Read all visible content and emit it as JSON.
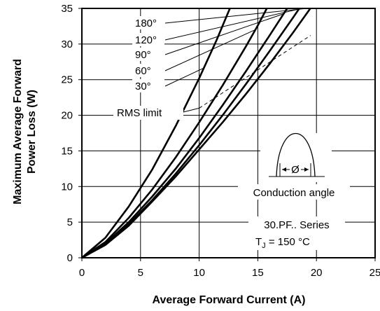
{
  "chart_data": {
    "type": "line",
    "title": "",
    "xlabel": "Average Forward Current (A)",
    "ylabel_lines": [
      "Maximum Average Forward",
      "Power Loss (W)"
    ],
    "xlim": [
      0,
      25
    ],
    "ylim": [
      0,
      35
    ],
    "xticks": [
      "0",
      "5",
      "10",
      "15",
      "20",
      "25"
    ],
    "yticks": [
      "0",
      "5",
      "10",
      "15",
      "20",
      "25",
      "30",
      "35"
    ],
    "grid": true,
    "series": [
      {
        "name": "180°",
        "x": [
          0,
          2,
          4,
          6,
          8,
          10,
          12,
          14,
          16,
          18,
          20,
          21.7
        ],
        "y": [
          0,
          1.8,
          4.5,
          7.9,
          11.4,
          15.2,
          19.0,
          23.0,
          27.2,
          31.6,
          36.2,
          40.0
        ]
      },
      {
        "name": "120°",
        "x": [
          0,
          2,
          4,
          6,
          8,
          10,
          12,
          14,
          16,
          18,
          19.5,
          20.8
        ],
        "y": [
          0,
          1.9,
          4.7,
          8.1,
          11.8,
          15.8,
          20.0,
          24.4,
          29.0,
          33.7,
          37.3,
          40.5
        ]
      },
      {
        "name": "90°",
        "x": [
          0,
          2,
          4,
          6,
          8,
          10,
          12,
          14,
          16,
          17.5,
          19.2
        ],
        "y": [
          0,
          2.0,
          5.0,
          8.6,
          12.5,
          16.8,
          21.4,
          26.2,
          31.2,
          35.0,
          39.5
        ]
      },
      {
        "name": "60°",
        "x": [
          0,
          2,
          4,
          6,
          8,
          10,
          12,
          14,
          15,
          16.4
        ],
        "y": [
          0,
          2.2,
          5.6,
          9.6,
          14.1,
          19.0,
          24.2,
          29.7,
          32.6,
          37.0
        ]
      },
      {
        "name": "30°",
        "x": [
          0,
          2,
          4,
          6,
          8,
          10,
          11.5,
          13
        ],
        "y": [
          0,
          2.8,
          7.2,
          12.4,
          18.5,
          25.2,
          30.6,
          36.5
        ]
      }
    ],
    "rms_limit": {
      "label": "RMS limit",
      "x": [
        10,
        19.5
      ],
      "y": [
        21,
        31.2
      ]
    },
    "inset": {
      "waveform_label": "Ø",
      "caption": "Conduction angle",
      "series_name": "30.PF.. Series",
      "temp_prefix": "T",
      "temp_sub": "J",
      "temp_value": " = 150 °C"
    }
  }
}
